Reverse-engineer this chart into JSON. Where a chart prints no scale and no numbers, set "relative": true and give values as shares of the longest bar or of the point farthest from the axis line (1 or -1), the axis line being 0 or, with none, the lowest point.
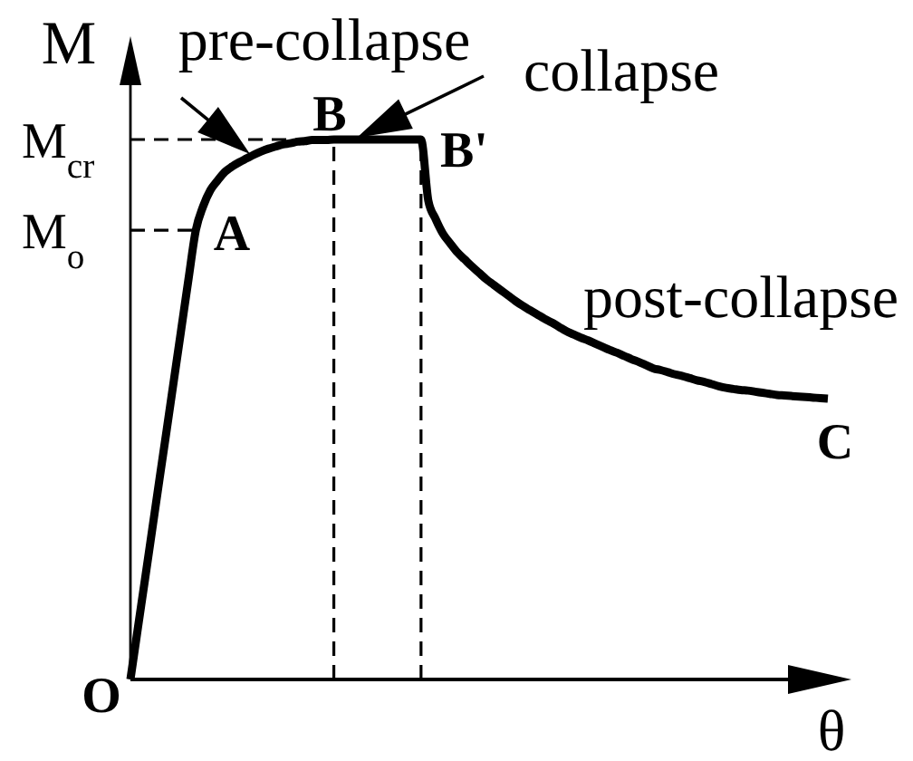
{
  "chart_data": {
    "type": "line",
    "relative": true,
    "xlabel": "θ",
    "ylabel": "M",
    "categories": [
      null,
      null,
      null,
      null,
      null,
      null,
      null,
      null,
      null,
      null,
      null,
      null,
      null,
      null,
      null,
      null,
      null,
      null,
      null,
      null,
      null,
      null,
      null,
      null,
      null,
      null,
      null,
      null,
      null,
      null,
      null,
      null,
      null,
      null,
      null,
      null,
      null,
      null,
      null,
      null,
      null,
      null,
      null,
      null,
      null,
      null,
      null,
      null,
      null,
      null,
      null,
      null,
      null,
      null,
      null,
      null,
      null,
      null,
      null,
      null,
      null,
      null,
      null,
      null,
      null,
      null,
      null,
      null,
      null,
      null,
      null,
      null,
      null,
      null,
      null,
      null,
      null,
      null,
      null,
      null,
      null,
      null,
      null,
      null,
      null,
      null,
      null,
      null,
      null,
      null,
      null,
      null,
      null,
      null,
      null,
      null,
      null
    ],
    "series": [
      {
        "color": "#000000",
        "values": [
          0,
          0.093,
          0.185,
          0.278,
          0.371,
          0.463,
          0.556,
          0.649,
          0.742,
          0.832,
          0.876,
          0.906,
          0.924,
          0.94,
          0.95,
          0.958,
          0.965,
          0.972,
          0.978,
          0.983,
          0.987,
          0.991,
          0.993,
          0.996,
          0.997,
          0.999,
          0.999,
          0.999,
          1,
          1,
          1,
          1,
          1,
          1,
          1,
          1,
          1,
          1,
          1,
          1,
          1,
          0.887,
          0.853,
          0.826,
          0.808,
          0.791,
          0.778,
          0.765,
          0.753,
          0.741,
          0.731,
          0.721,
          0.711,
          0.701,
          0.692,
          0.684,
          0.676,
          0.668,
          0.661,
          0.653,
          0.645,
          0.639,
          0.633,
          0.628,
          0.622,
          0.616,
          0.61,
          0.605,
          0.599,
          0.593,
          0.588,
          0.582,
          0.576,
          0.573,
          0.569,
          0.565,
          0.562,
          0.558,
          0.554,
          0.551,
          0.547,
          0.543,
          0.54,
          0.538,
          0.536,
          0.535,
          0.533,
          0.531,
          0.529,
          0.527,
          0.526,
          0.525,
          0.524,
          0.523,
          0.522,
          0.521,
          0.52
        ]
      }
    ],
    "ref_lines": [
      {
        "axis": "y",
        "value": 1,
        "label": "M$_{cr}$",
        "line_style": "dashed"
      },
      {
        "axis": "y",
        "value": 0.832,
        "label": "M$_{o}$",
        "line_style": "dashed"
      }
    ],
    "annotations": [
      "O",
      "A",
      "B",
      "B'",
      "C",
      "pre-collapse",
      "collapse",
      "post-collapse"
    ]
  }
}
